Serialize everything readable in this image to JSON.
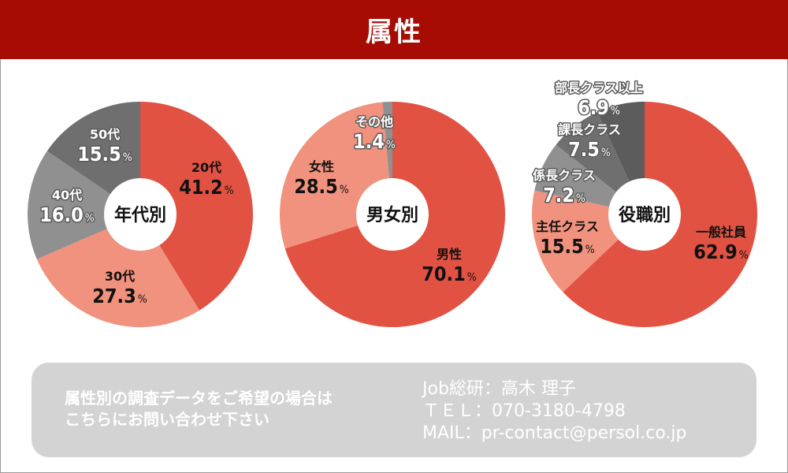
{
  "header": {
    "title": "属性"
  },
  "colors": {
    "header_bg": "#a60c04",
    "red": "#e25243",
    "salmon": "#f0927d",
    "gray": "#909090",
    "darkgray": "#6f6f6f",
    "darkergray": "#5c5c5c"
  },
  "chart_data": [
    {
      "type": "pie",
      "center_label": "年代別",
      "slices": [
        {
          "label": "20代",
          "value": 41.2,
          "color": "#e25243",
          "text_color": "#111111"
        },
        {
          "label": "30代",
          "value": 27.3,
          "color": "#f0927d",
          "text_color": "#111111"
        },
        {
          "label": "40代",
          "value": 16.0,
          "color": "#909090",
          "text_color": "#ffffff"
        },
        {
          "label": "50代",
          "value": 15.5,
          "color": "#6f6f6f",
          "text_color": "#ffffff"
        }
      ]
    },
    {
      "type": "pie",
      "center_label": "男女別",
      "slices": [
        {
          "label": "男性",
          "value": 70.1,
          "color": "#e25243",
          "text_color": "#111111"
        },
        {
          "label": "女性",
          "value": 28.5,
          "color": "#f0927d",
          "text_color": "#111111"
        },
        {
          "label": "その他",
          "value": 1.4,
          "color": "#909090",
          "text_color": "#ffffff"
        }
      ]
    },
    {
      "type": "pie",
      "center_label": "役職別",
      "slices": [
        {
          "label": "一般社員",
          "value": 62.9,
          "color": "#e25243",
          "text_color": "#111111"
        },
        {
          "label": "主任クラス",
          "value": 15.5,
          "color": "#f0927d",
          "text_color": "#111111"
        },
        {
          "label": "係長クラス",
          "value": 7.2,
          "color": "#909090",
          "text_color": "#ffffff"
        },
        {
          "label": "課長クラス",
          "value": 7.5,
          "color": "#6f6f6f",
          "text_color": "#ffffff"
        },
        {
          "label": "部長クラス以上",
          "value": 6.9,
          "color": "#5c5c5c",
          "text_color": "#ffffff"
        }
      ]
    }
  ],
  "contact": {
    "left_line1": "属性別の調査データをご希望の場合は",
    "left_line2": "こちらにお問い合わせ下さい",
    "right_line1": "Job総研：高木 理子",
    "right_line2": "ＴＥＬ：070-3180-4798",
    "right_line3": "MAIL：pr-contact@persol.co.jp"
  }
}
